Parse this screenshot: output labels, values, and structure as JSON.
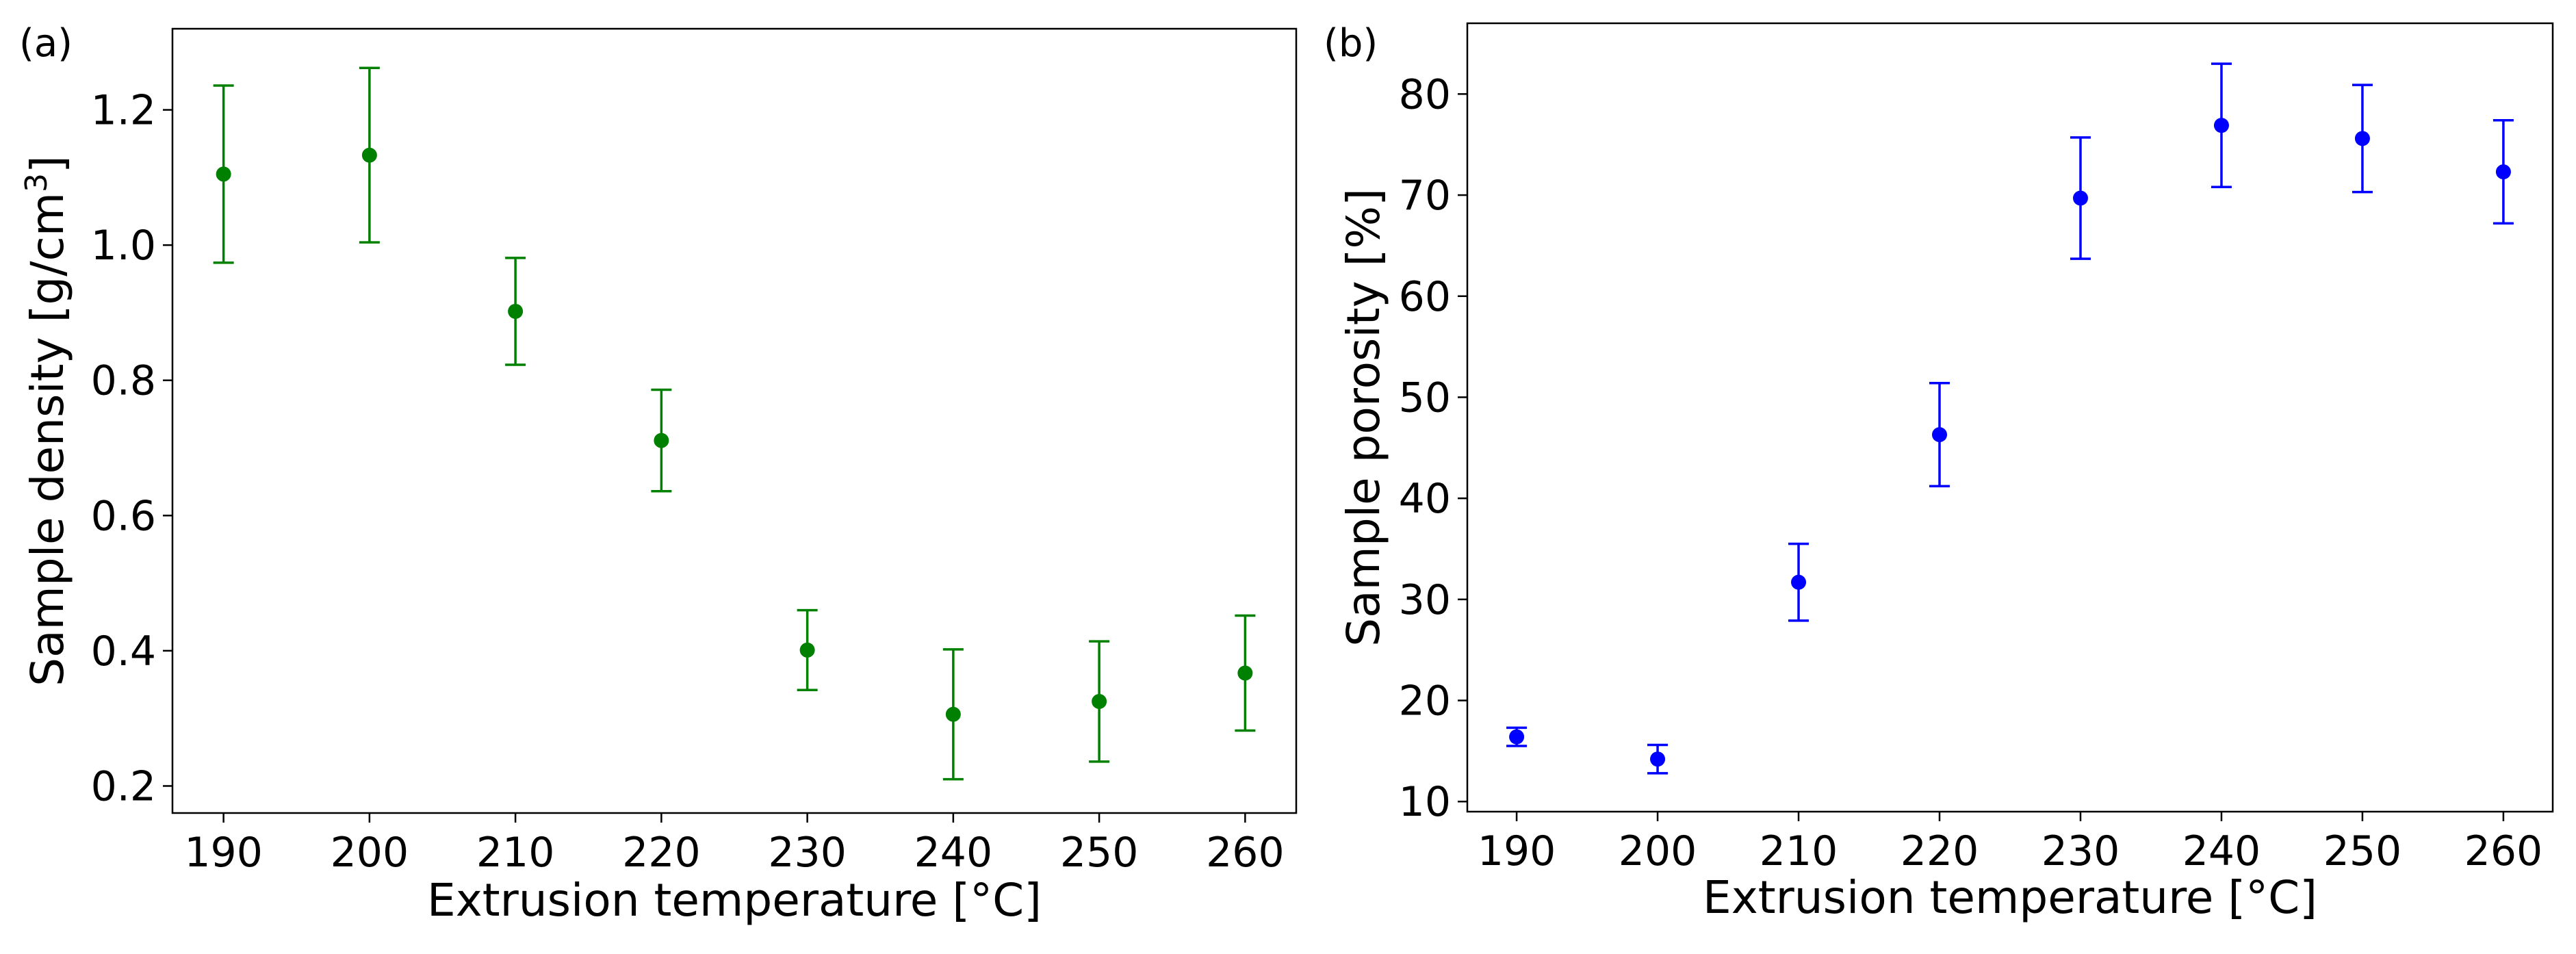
{
  "chart_data": [
    {
      "type": "scatter",
      "panel_label": "(a)",
      "xlabel": "Extrusion temperature [°C]",
      "ylabel": "Sample density [g/cm³]",
      "ylabel_base": "Sample density [g/cm",
      "ylabel_sup": "3",
      "ylabel_end": "]",
      "xlim": [
        186.5,
        263.5
      ],
      "ylim": [
        0.16,
        1.32
      ],
      "xticks": [
        190,
        200,
        210,
        220,
        230,
        240,
        250,
        260
      ],
      "xtick_labels": [
        "190",
        "200",
        "210",
        "220",
        "230",
        "240",
        "250",
        "260"
      ],
      "yticks": [
        0.2,
        0.4,
        0.6,
        0.8,
        1.0,
        1.2
      ],
      "ytick_labels": [
        "0.2",
        "0.4",
        "0.6",
        "0.8",
        "1.0",
        "1.2"
      ],
      "grid": false,
      "color": "#008000",
      "series": [
        {
          "x": [
            190,
            200,
            210,
            220,
            230,
            240,
            250,
            260
          ],
          "y": [
            1.105,
            1.133,
            0.902,
            0.711,
            0.401,
            0.306,
            0.325,
            0.367
          ],
          "err": [
            0.131,
            0.129,
            0.079,
            0.075,
            0.059,
            0.096,
            0.089,
            0.085
          ]
        }
      ]
    },
    {
      "type": "scatter",
      "panel_label": "(b)",
      "xlabel": "Extrusion temperature [°C]",
      "ylabel": "Sample porosity [%]",
      "xlim": [
        186.5,
        263.5
      ],
      "ylim": [
        9,
        87
      ],
      "xticks": [
        190,
        200,
        210,
        220,
        230,
        240,
        250,
        260
      ],
      "xtick_labels": [
        "190",
        "200",
        "210",
        "220",
        "230",
        "240",
        "250",
        "260"
      ],
      "yticks": [
        10,
        20,
        30,
        40,
        50,
        60,
        70,
        80
      ],
      "ytick_labels": [
        "10",
        "20",
        "30",
        "40",
        "50",
        "60",
        "70",
        "80"
      ],
      "grid": false,
      "color": "#0000ff",
      "series": [
        {
          "x": [
            190,
            200,
            210,
            220,
            230,
            240,
            250,
            260
          ],
          "y": [
            16.4,
            14.2,
            31.7,
            46.3,
            69.7,
            76.9,
            75.6,
            72.3
          ],
          "err": [
            0.9,
            1.4,
            3.8,
            5.1,
            6.0,
            6.1,
            5.3,
            5.1
          ]
        }
      ]
    }
  ]
}
